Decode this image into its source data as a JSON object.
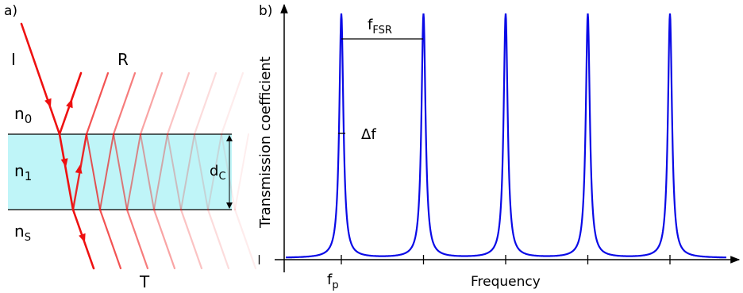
{
  "panel_a": {
    "label": "a)",
    "incident_label": "I",
    "reflected_label": "R",
    "transmitted_label": "T",
    "n0_base": "n",
    "n0_sub": "0",
    "n1_base": "n",
    "n1_sub": "1",
    "ns_base": "n",
    "ns_sub": "S",
    "thickness_base": "d",
    "thickness_sub": "C",
    "colors": {
      "slab": "#bff5f8",
      "ray": "#ee1111"
    },
    "ray_count": 7
  },
  "panel_b": {
    "label": "b)",
    "fsr_base": "f",
    "fsr_sub": "FSR",
    "linewidth_label": "Δf",
    "xlabel": "Frequency",
    "ylabel": "Transmission coefficient",
    "tick_label_base": "f",
    "tick_label_sub": "p",
    "colors": {
      "curve": "#0a0ae6"
    }
  },
  "chart_data": {
    "type": "line",
    "xlabel": "Frequency",
    "ylabel": "Transmission coefficient",
    "resonance_peaks": [
      1,
      2,
      3,
      4,
      5
    ],
    "x_ticks": [
      0,
      1,
      2,
      3,
      4,
      5
    ],
    "peak_value": 1.0,
    "baseline_value": 0.0
  }
}
